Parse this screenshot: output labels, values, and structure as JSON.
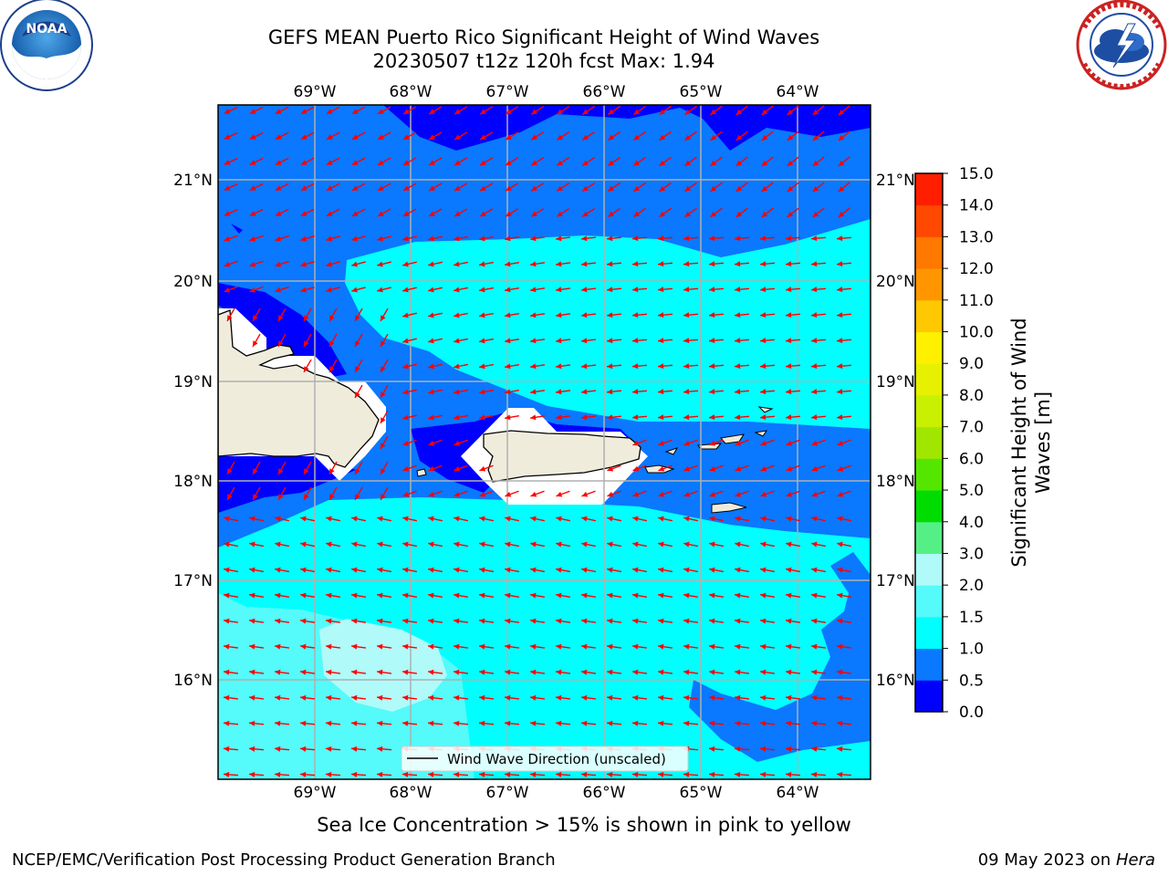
{
  "title_line1": "GEFS MEAN Puerto Rico Significant Height of Wind Waves",
  "title_line2": "20230507 t12z 120h fcst   Max: 1.94",
  "logos": {
    "left": {
      "icon": "noaa-logo-icon",
      "text": "NOAA"
    },
    "right": {
      "icon": "nws-logo-icon"
    }
  },
  "lon_labels": [
    "69°W",
    "68°W",
    "67°W",
    "66°W",
    "65°W",
    "64°W"
  ],
  "lat_labels": [
    "21°N",
    "20°N",
    "19°N",
    "18°N",
    "17°N",
    "16°N"
  ],
  "legend": {
    "label": "Wind Wave Direction (unscaled)"
  },
  "colorbar": {
    "title_line1": "Significant Height of Wind",
    "title_line2": "Waves [m]",
    "ticks": [
      "0.0",
      "0.5",
      "1.0",
      "1.5",
      "2.0",
      "3.0",
      "4.0",
      "5.0",
      "6.0",
      "7.0",
      "8.0",
      "9.0",
      "10.0",
      "11.0",
      "12.0",
      "13.0",
      "14.0",
      "15.0"
    ],
    "colors": [
      "#0000ff",
      "#0a78ff",
      "#00ffff",
      "#55fafa",
      "#b0fafa",
      "#55f085",
      "#00dc00",
      "#55e600",
      "#a0e600",
      "#c8f000",
      "#e6f000",
      "#fff000",
      "#ffc800",
      "#ff9600",
      "#ff7800",
      "#ff4800",
      "#ff1e00"
    ]
  },
  "footer_note": "Sea Ice Concentration > 15% is shown in pink to yellow",
  "footer_left": "NCEP/EMC/Verification Post Processing Product Generation Branch",
  "footer_right_prefix": "09 May 2023 on ",
  "footer_right_host": "Hera",
  "colors": {
    "land": "#efecdc",
    "vector": "#ff0000",
    "grid": "#b0b0b0"
  }
}
